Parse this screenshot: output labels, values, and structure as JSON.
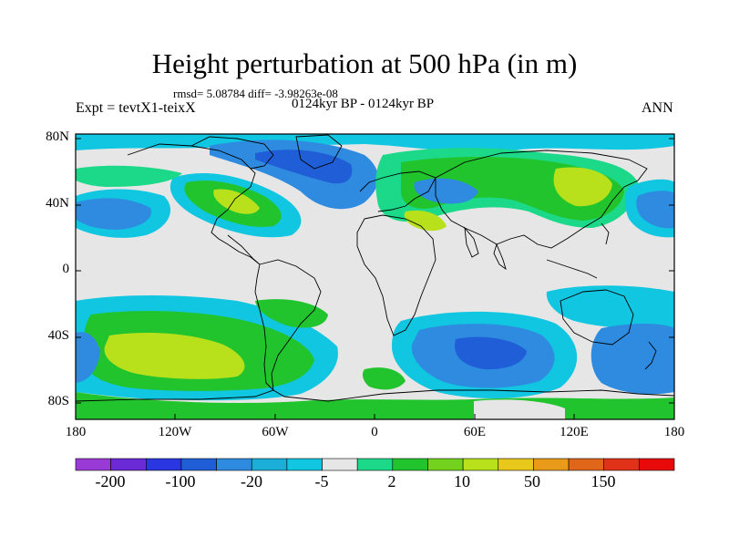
{
  "header": {
    "title": "Height perturbation at 500 hPa (in m)",
    "stats": "rmsd= 5.08784 diff= -3.98263e-08",
    "period": "0124kyr BP - 0124kyr BP",
    "experiment": "Expt = tevtX1-teixX",
    "season": "ANN"
  },
  "axes": {
    "y_labels": [
      "80N",
      "40N",
      "0",
      "40S",
      "80S"
    ],
    "x_labels": [
      "180",
      "120W",
      "60W",
      "0",
      "60E",
      "120E",
      "180"
    ]
  },
  "colorbar": {
    "labels": [
      "-200",
      "-100",
      "-20",
      "-5",
      "2",
      "10",
      "50",
      "150"
    ],
    "colors": [
      "#9a3ad6",
      "#6a2ad6",
      "#2a36e0",
      "#1f5ed6",
      "#2e8be0",
      "#1aaed8",
      "#11c6e0",
      "#e6e6e6",
      "#1cd98a",
      "#22c42e",
      "#73d21e",
      "#b8e11c",
      "#e8c81a",
      "#e89a18",
      "#e0661a",
      "#e03218",
      "#e80a0a"
    ]
  },
  "field_colors": {
    "blue_dark": "#1f5ed6",
    "blue_mid": "#2e8be0",
    "cyan": "#11c6e0",
    "neutral": "#e6e6e6",
    "teal_green": "#1cd98a",
    "green": "#22c42e",
    "lime": "#b8e11c"
  }
}
